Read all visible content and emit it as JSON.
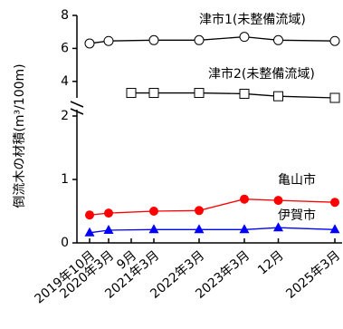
{
  "chart_data": [
    {
      "type": "line",
      "ylabel": "倒流木の材積(m³/100m)",
      "xlim": [
        2019.47,
        2025.33
      ],
      "ylim": [
        3,
        8
      ],
      "yticks": [
        4,
        6,
        8
      ],
      "series": [
        {
          "name": "津市1(未整備流域)",
          "color": "#000000",
          "marker": "circle",
          "x": [
            2019.75,
            2020.17,
            2021.17,
            2022.17,
            2023.17,
            2023.92,
            2025.17
          ],
          "values": [
            6.3,
            6.45,
            6.5,
            6.5,
            6.7,
            6.5,
            6.45
          ]
        },
        {
          "name": "津市2(未整備流域)",
          "color": "#000000",
          "marker": "square",
          "x": [
            2020.67,
            2021.17,
            2022.17,
            2023.17,
            2023.92,
            2025.17
          ],
          "values": [
            3.3,
            3.3,
            3.3,
            3.25,
            3.1,
            3.0
          ]
        }
      ]
    },
    {
      "type": "line",
      "xlim": [
        2019.47,
        2025.33
      ],
      "ylim": [
        0,
        2.1
      ],
      "yticks": [
        0,
        1,
        2
      ],
      "xticks": [
        {
          "value": 2019.75,
          "label": "2019年10月"
        },
        {
          "value": 2020.17,
          "label": "2020年3月"
        },
        {
          "value": 2020.67,
          "label": "9月"
        },
        {
          "value": 2021.17,
          "label": "2021年3月"
        },
        {
          "value": 2022.17,
          "label": "2022年3月"
        },
        {
          "value": 2023.17,
          "label": "2023年3月"
        },
        {
          "value": 2023.92,
          "label": "12月"
        },
        {
          "value": 2025.17,
          "label": "2025年3月"
        }
      ],
      "series": [
        {
          "name": "亀山市",
          "color": "#ff0000",
          "marker": "circle",
          "x": [
            2019.75,
            2020.17,
            2021.17,
            2022.17,
            2023.17,
            2023.92,
            2025.17
          ],
          "values": [
            0.44,
            0.47,
            0.5,
            0.51,
            0.69,
            0.67,
            0.64
          ]
        },
        {
          "name": "伊賀市",
          "color": "#0000ff",
          "marker": "triangle",
          "x": [
            2019.75,
            2020.17,
            2021.17,
            2022.17,
            2023.17,
            2023.92,
            2025.17
          ],
          "values": [
            0.16,
            0.2,
            0.21,
            0.21,
            0.21,
            0.24,
            0.21
          ]
        }
      ]
    }
  ]
}
